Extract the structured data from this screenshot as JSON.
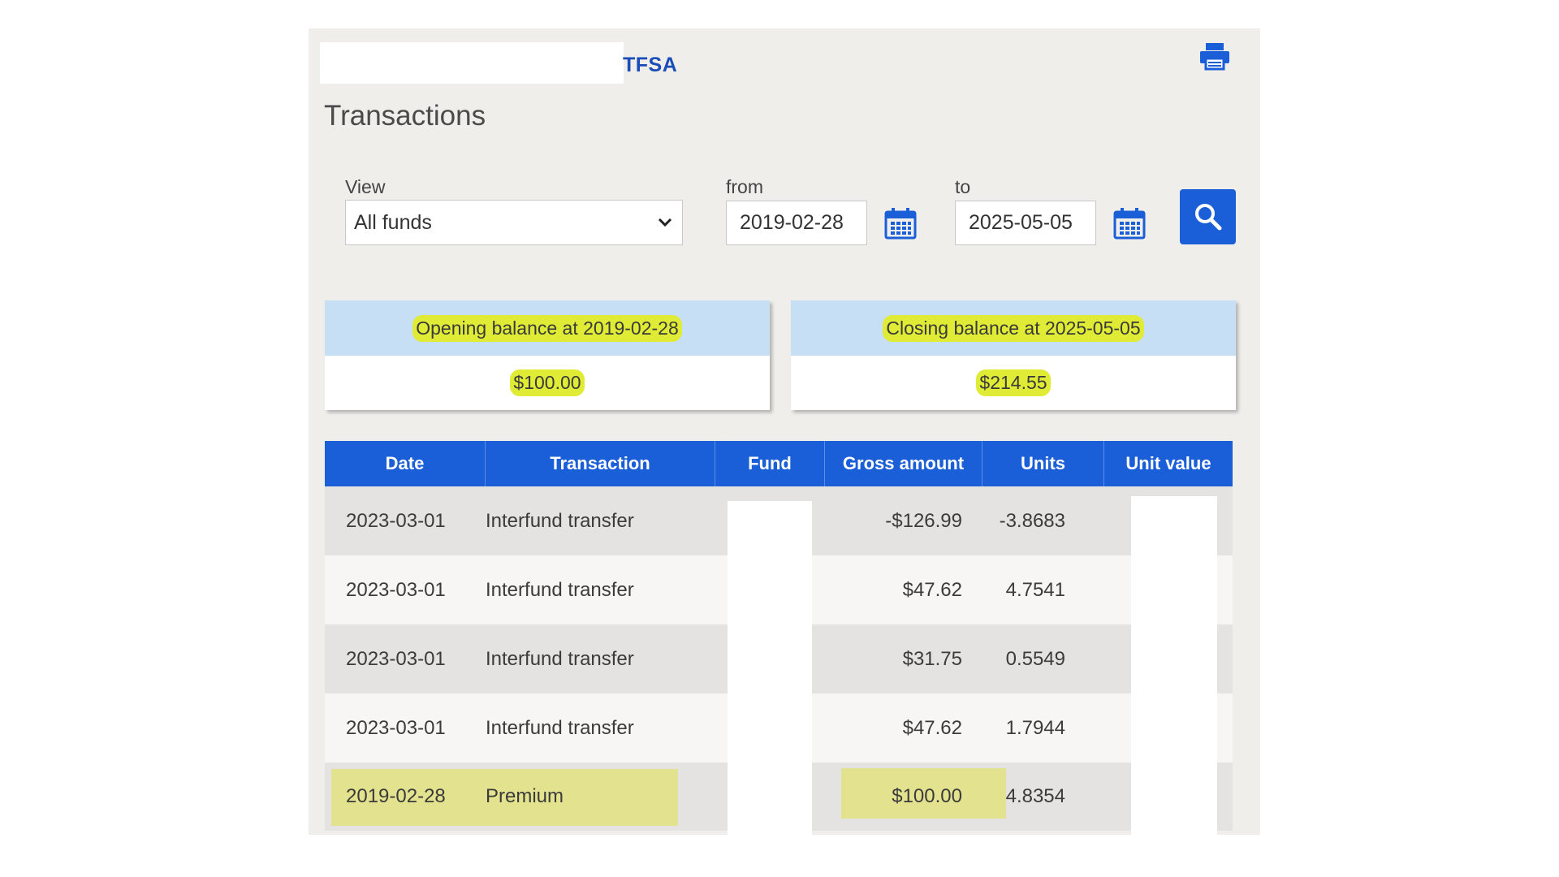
{
  "header": {
    "account_type": "TFSA",
    "print_icon": "printer-icon"
  },
  "page": {
    "title": "Transactions"
  },
  "filters": {
    "view_label": "View",
    "view_value": "All funds",
    "from_label": "from",
    "from_value": "2019-02-28",
    "to_label": "to",
    "to_value": "2025-05-05",
    "calendar_icon": "calendar-icon",
    "search_icon": "search-icon"
  },
  "balances": {
    "opening": {
      "label": "Opening balance at 2019-02-28",
      "value": "$100.00"
    },
    "closing": {
      "label": "Closing balance at 2025-05-05",
      "value": "$214.55"
    }
  },
  "table": {
    "columns": [
      "Date",
      "Transaction",
      "Fund",
      "Gross amount",
      "Units",
      "Unit value"
    ],
    "rows": [
      {
        "date": "2023-03-01",
        "transaction": "Interfund transfer",
        "fund": "",
        "gross": "-$126.99",
        "units": "-3.8683",
        "unit_value": ""
      },
      {
        "date": "2023-03-01",
        "transaction": "Interfund transfer",
        "fund": "",
        "gross": "$47.62",
        "units": "4.7541",
        "unit_value": ""
      },
      {
        "date": "2023-03-01",
        "transaction": "Interfund transfer",
        "fund": "",
        "gross": "$31.75",
        "units": "0.5549",
        "unit_value": ""
      },
      {
        "date": "2023-03-01",
        "transaction": "Interfund transfer",
        "fund": "",
        "gross": "$47.62",
        "units": "1.7944",
        "unit_value": ""
      },
      {
        "date": "2019-02-28",
        "transaction": "Premium",
        "fund": "",
        "gross": "$100.00",
        "units": "4.8354",
        "unit_value": ""
      }
    ]
  },
  "colors": {
    "accent": "#1a5fd8",
    "highlight": "#dfeb34",
    "balance_header": "#c7dff4"
  }
}
